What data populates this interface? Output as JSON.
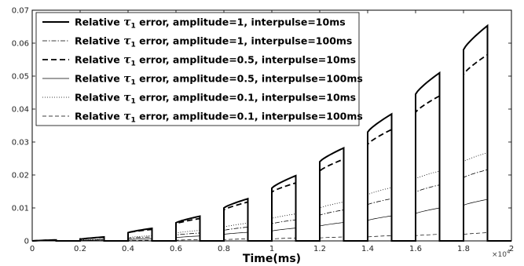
{
  "chart_data": {
    "type": "line",
    "title": "",
    "xlabel": "Time(ms)",
    "ylabel": "",
    "x_exponent_prefix": "×10",
    "x_exponent_power": "4",
    "x_scale": 10000,
    "xlim": [
      0,
      20000
    ],
    "ylim": [
      0,
      0.07
    ],
    "x_ticks": [
      0,
      2000,
      4000,
      6000,
      8000,
      10000,
      12000,
      14000,
      16000,
      18000,
      20000
    ],
    "x_tick_labels": [
      "0",
      "0.2",
      "0.4",
      "0.6",
      "0.8",
      "1",
      "1.2",
      "1.4",
      "1.6",
      "1.8",
      "2"
    ],
    "y_ticks": [
      0,
      0.01,
      0.02,
      0.03,
      0.04,
      0.05,
      0.06,
      0.07
    ],
    "y_tick_labels": [
      "0",
      "0.01",
      "0.02",
      "0.03",
      "0.04",
      "0.05",
      "0.06",
      "0.07"
    ],
    "grid": false,
    "legend_position": "top-left",
    "pulse_starts": [
      0,
      2000,
      4000,
      6000,
      8000,
      10000,
      12000,
      14000,
      16000,
      18000
    ],
    "pulse_ends": [
      1000,
      3000,
      5000,
      7000,
      9000,
      11000,
      13000,
      15000,
      17000,
      19000
    ],
    "series": [
      {
        "name_prefix": "Relative ",
        "name_symbol": "τ",
        "name_subscript": "1",
        "name_suffix": " error, amplitude=1, interpulse=10ms",
        "style": "solid-thick",
        "start_values": [
          0,
          0.0005,
          0.0025,
          0.0055,
          0.01,
          0.016,
          0.024,
          0.033,
          0.0445,
          0.058
        ],
        "end_values": [
          0.0003,
          0.0012,
          0.0038,
          0.0075,
          0.0128,
          0.0198,
          0.0282,
          0.0385,
          0.051,
          0.0653
        ]
      },
      {
        "name_prefix": "Relative ",
        "name_symbol": "τ",
        "name_subscript": "1",
        "name_suffix": " error, amplitude=1, interpulse=100ms",
        "style": "dashdot",
        "start_values": [
          0,
          0.0001,
          0.0008,
          0.0018,
          0.0032,
          0.0052,
          0.0078,
          0.011,
          0.0148,
          0.0192
        ],
        "end_values": [
          0.0001,
          0.0004,
          0.0012,
          0.0024,
          0.0042,
          0.0064,
          0.0094,
          0.0128,
          0.017,
          0.0216
        ]
      },
      {
        "name_prefix": "Relative ",
        "name_symbol": "τ",
        "name_subscript": "1",
        "name_suffix": " error, amplitude=0.5, interpulse=10ms",
        "style": "dashed-thick",
        "start_values": [
          0,
          0.0005,
          0.0025,
          0.0052,
          0.0094,
          0.0148,
          0.0212,
          0.0293,
          0.039,
          0.0505
        ],
        "end_values": [
          0.0003,
          0.0011,
          0.0035,
          0.0068,
          0.0118,
          0.0176,
          0.0248,
          0.0338,
          0.044,
          0.0565
        ]
      },
      {
        "name_prefix": "Relative ",
        "name_symbol": "τ",
        "name_subscript": "1",
        "name_suffix": " error, amplitude=0.5, interpulse=100ms",
        "style": "solid-thin",
        "start_values": [
          0,
          0.0001,
          0.0004,
          0.001,
          0.002,
          0.003,
          0.0045,
          0.0062,
          0.0083,
          0.0108
        ],
        "end_values": [
          0.0001,
          0.0003,
          0.0007,
          0.0015,
          0.0026,
          0.0039,
          0.0056,
          0.0076,
          0.01,
          0.0126
        ]
      },
      {
        "name_prefix": "Relative ",
        "name_symbol": "τ",
        "name_subscript": "1",
        "name_suffix": " error, amplitude=0.1, interpulse=10ms",
        "style": "dotted",
        "start_values": [
          0,
          0.0002,
          0.001,
          0.0024,
          0.0042,
          0.0068,
          0.01,
          0.014,
          0.0188,
          0.024
        ],
        "end_values": [
          0.0001,
          0.0005,
          0.0016,
          0.0032,
          0.0054,
          0.0082,
          0.0118,
          0.0162,
          0.0212,
          0.0268
        ]
      },
      {
        "name_prefix": "Relative ",
        "name_symbol": "τ",
        "name_subscript": "1",
        "name_suffix": " error, amplitude=0.1, interpulse=100ms",
        "style": "dashed-thin",
        "start_values": [
          0,
          0.0,
          0.0001,
          0.0002,
          0.0004,
          0.0006,
          0.0009,
          0.0012,
          0.0016,
          0.002
        ],
        "end_values": [
          0.0,
          0.0001,
          0.0002,
          0.0004,
          0.0006,
          0.0009,
          0.0012,
          0.0016,
          0.002,
          0.0025
        ]
      }
    ]
  }
}
